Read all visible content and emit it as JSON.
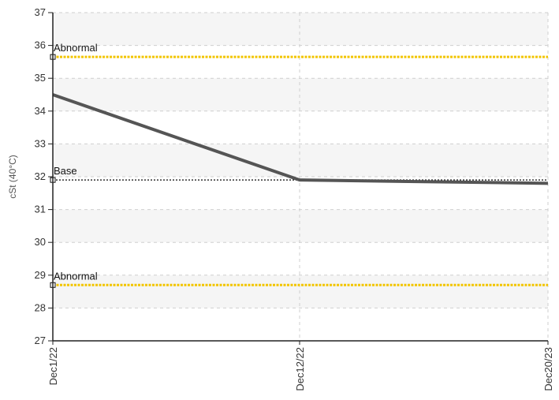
{
  "chart_data": {
    "type": "line",
    "ylabel": "cSt (40°C)",
    "ylim": [
      27,
      37
    ],
    "yticks": [
      27,
      28,
      29,
      30,
      31,
      32,
      33,
      34,
      35,
      36,
      37
    ],
    "categories": [
      "Dec1/22",
      "Dec12/22",
      "Dec20/23"
    ],
    "series": [
      {
        "values": [
          34.5,
          31.9,
          31.8
        ]
      }
    ],
    "reference_lines": [
      {
        "label": "Abnormal",
        "value": 35.65,
        "style": "dotted"
      },
      {
        "label": "Base",
        "value": 31.9,
        "style": "dotted"
      },
      {
        "label": "Abnormal",
        "value": 28.7,
        "style": "dotted"
      }
    ],
    "grid": true,
    "colors": {
      "series": "#555555",
      "abnormal": "#f2c500",
      "base": "#333333",
      "band_light": "#f5f5f5",
      "band_white": "#ffffff",
      "grid": "#cfcfcf",
      "axis": "#222222"
    }
  }
}
